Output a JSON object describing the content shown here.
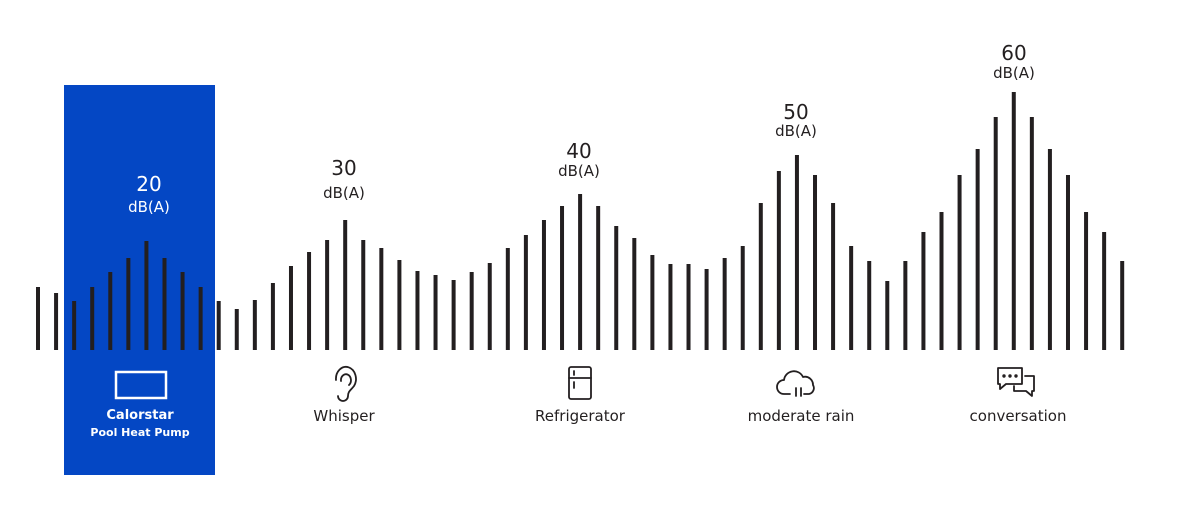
{
  "items": [
    {
      "level": 20,
      "unit": "dB(A)",
      "label": "Calorstar",
      "sublabel": "Pool Heat Pump"
    },
    {
      "level": 30,
      "unit": "dB(A)",
      "label": "Whisper"
    },
    {
      "level": 40,
      "unit": "dB(A)",
      "label": "Refrigerator"
    },
    {
      "level": 50,
      "unit": "dB(A)",
      "label": "moderate rain"
    },
    {
      "level": 60,
      "unit": "dB(A)",
      "label": "conversation"
    }
  ]
}
